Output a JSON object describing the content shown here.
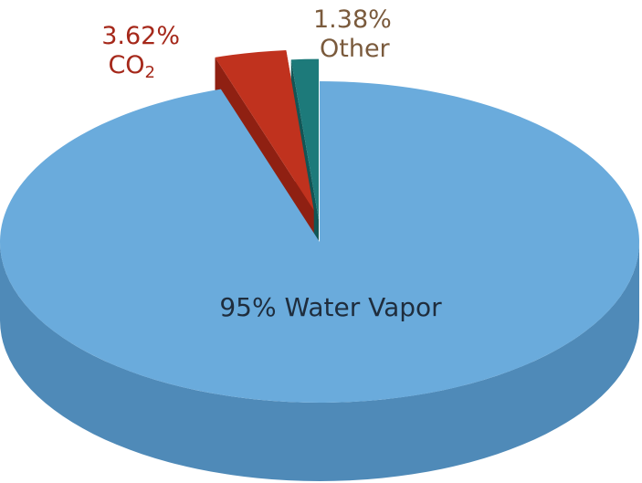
{
  "chart_data": {
    "type": "pie",
    "style": "3d-exploded",
    "slices": [
      {
        "label": "Water Vapor",
        "value": 95,
        "display": "95% Water Vapor",
        "color": "#6aabdc",
        "side_color": "#4f8ab8"
      },
      {
        "label": "CO2",
        "value": 3.62,
        "display_pct": "3.62%",
        "display_name": "CO",
        "display_sub": "2",
        "color": "#c0321e",
        "side_color": "#8f2012"
      },
      {
        "label": "Other",
        "value": 1.38,
        "display_pct": "1.38%",
        "display_name": "Other",
        "color": "#1d7a7a",
        "side_color": "#125656"
      }
    ],
    "label_colors": {
      "main": "#1f2d3d",
      "co2": "#a5281a",
      "other": "#7a5a3c"
    }
  }
}
